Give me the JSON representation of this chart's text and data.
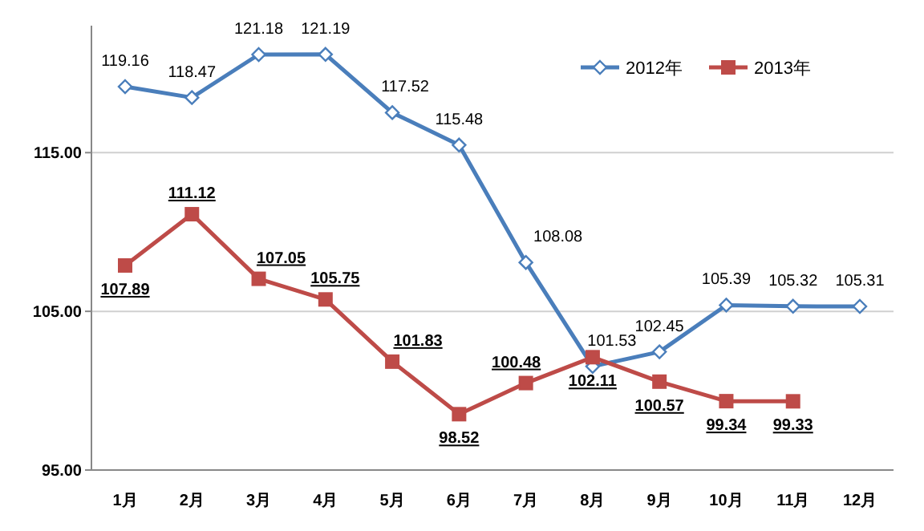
{
  "chart_data": {
    "type": "line",
    "categories": [
      "1月",
      "2月",
      "3月",
      "4月",
      "5月",
      "6月",
      "7月",
      "8月",
      "9月",
      "10月",
      "11月",
      "12月"
    ],
    "ylim": [
      95,
      123
    ],
    "yticks": [
      {
        "value": 95,
        "label": "95.00"
      },
      {
        "value": 105,
        "label": "105.00"
      },
      {
        "value": 115,
        "label": "115.00"
      }
    ],
    "grid": "y",
    "legend": "top right",
    "series": [
      {
        "name": "2012年",
        "color": "#4a7ebb",
        "marker": "diamond",
        "values": [
          119.16,
          118.47,
          121.18,
          121.19,
          117.52,
          115.48,
          108.08,
          101.53,
          102.45,
          105.39,
          105.32,
          105.31
        ],
        "value_labels": [
          "119.16",
          "118.47",
          "121.18",
          "121.19",
          "117.52",
          "115.48",
          "108.08",
          "101.53",
          "102.45",
          "105.39",
          "105.32",
          "105.31"
        ]
      },
      {
        "name": "2013年",
        "color": "#be4b48",
        "marker": "square",
        "values": [
          107.89,
          111.12,
          107.05,
          105.75,
          101.83,
          98.52,
          100.48,
          102.11,
          100.57,
          99.34,
          99.33,
          null
        ],
        "value_labels": [
          "107.89",
          "111.12",
          "107.05",
          "105.75",
          "101.83",
          "98.52",
          "100.48",
          "102.11",
          "100.57",
          "99.34",
          "99.33",
          null
        ]
      }
    ]
  }
}
